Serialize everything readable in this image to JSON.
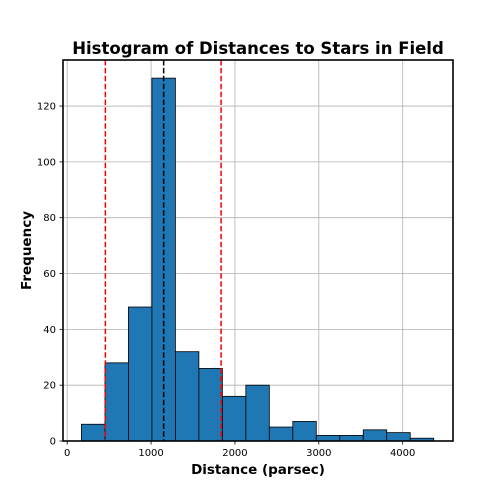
{
  "chart_data": {
    "type": "bar",
    "title": "Histogram of Distances to Stars in Field",
    "xlabel": "Distance (parsec)",
    "ylabel": "Frequency",
    "xlim": [
      -50,
      4600
    ],
    "ylim": [
      0,
      136.5
    ],
    "xticks": [
      0,
      1000,
      2000,
      3000,
      4000
    ],
    "yticks": [
      0,
      20,
      40,
      60,
      80,
      100,
      120
    ],
    "grid": true,
    "bar_color": "#1f77b4",
    "bins": [
      {
        "x0": 170,
        "x1": 450,
        "count": 6
      },
      {
        "x0": 450,
        "x1": 730,
        "count": 28
      },
      {
        "x0": 730,
        "x1": 1010,
        "count": 48
      },
      {
        "x0": 1010,
        "x1": 1290,
        "count": 130
      },
      {
        "x0": 1290,
        "x1": 1570,
        "count": 32
      },
      {
        "x0": 1570,
        "x1": 1850,
        "count": 26
      },
      {
        "x0": 1850,
        "x1": 2130,
        "count": 16
      },
      {
        "x0": 2130,
        "x1": 2410,
        "count": 20
      },
      {
        "x0": 2410,
        "x1": 2690,
        "count": 5
      },
      {
        "x0": 2690,
        "x1": 2970,
        "count": 7
      },
      {
        "x0": 2970,
        "x1": 3250,
        "count": 2
      },
      {
        "x0": 3250,
        "x1": 3530,
        "count": 2
      },
      {
        "x0": 3530,
        "x1": 3810,
        "count": 4
      },
      {
        "x0": 3810,
        "x1": 4090,
        "count": 3
      },
      {
        "x0": 4090,
        "x1": 4370,
        "count": 1
      }
    ],
    "reference_lines": [
      {
        "x": 1150,
        "color": "#000000",
        "style": "dashed"
      },
      {
        "x": 455,
        "color": "#ff0000",
        "style": "dashed"
      },
      {
        "x": 1835,
        "color": "#ff0000",
        "style": "dashed"
      }
    ]
  }
}
